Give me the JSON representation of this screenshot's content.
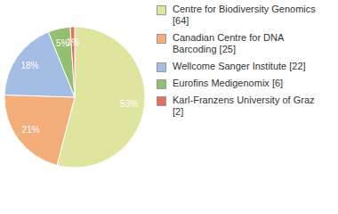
{
  "chart_data": {
    "type": "pie",
    "categories": [
      "Centre for Biodiversity Genomics [64]",
      "Canadian Centre for DNA Barcoding [25]",
      "Wellcome Sanger Institute [22]",
      "Eurofins Medigenomix [6]",
      "Karl-Franzens University of Graz [2]"
    ],
    "values": [
      53,
      21,
      18,
      5,
      1
    ],
    "value_labels": [
      "53%",
      "21%",
      "18%",
      "5%",
      "1%"
    ],
    "data_labels": true,
    "colors": [
      "#dfe59f",
      "#f2ad78",
      "#a3bde5",
      "#94bf70",
      "#e3705d"
    ],
    "legend": "right"
  }
}
